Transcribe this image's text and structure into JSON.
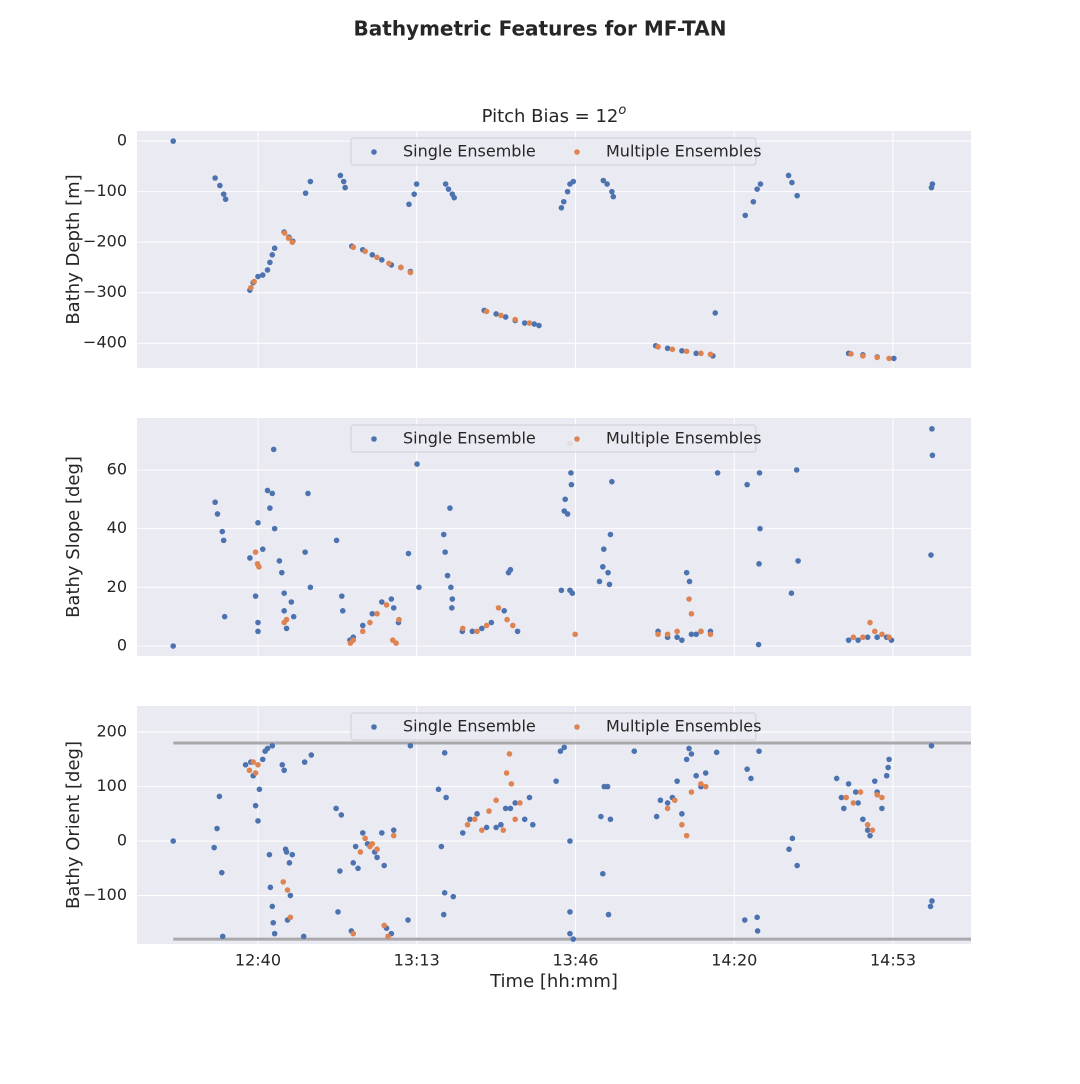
{
  "title": "Bathymetric Features for MF-TAN",
  "chart_data": [
    {
      "type": "scatter",
      "title": "Pitch Bias = 12",
      "title_superscript": "o",
      "ylabel": "Bathy Depth [m]",
      "xlim": [
        734.6,
        909.7
      ],
      "xticks": [
        760,
        793.33,
        826.67,
        860,
        893.33
      ],
      "ylim": [
        -449,
        20
      ],
      "yticks": [
        {
          "value": 0,
          "label": "0"
        },
        {
          "value": -100,
          "label": "−100"
        },
        {
          "value": -200,
          "label": "−200"
        },
        {
          "value": -300,
          "label": "−300"
        },
        {
          "value": -400,
          "label": "−400"
        }
      ],
      "grid": true,
      "legend": "upper center",
      "series": [
        {
          "name": "Single Ensemble",
          "color": "#4c72b0",
          "x": [
            742.2,
            751,
            752,
            752.8,
            753.2,
            758.3,
            759,
            760,
            761,
            762,
            762.5,
            763,
            763.5,
            765.5,
            766.5,
            767.3,
            770,
            771,
            777.3,
            778,
            778.3,
            779.7,
            782,
            784,
            786,
            788,
            790,
            792,
            791.7,
            792.8,
            793.3,
            799.4,
            800,
            800.8,
            801.2,
            807.5,
            810,
            812,
            814,
            816,
            818,
            819,
            823.7,
            824.2,
            825,
            825.5,
            826.2,
            832.5,
            833.3,
            834.3,
            834.6,
            843.5,
            846,
            849,
            852,
            855.5,
            856,
            862.3,
            864,
            864.8,
            865.5,
            871.4,
            872.1,
            873.2,
            884,
            887,
            890,
            893.5,
            901.4,
            901.6
          ],
          "values": [
            0,
            -73,
            -88,
            -105,
            -115,
            -295,
            -280,
            -268,
            -265,
            -255,
            -240,
            -225,
            -212,
            -180,
            -190,
            -198,
            -103,
            -80,
            -68,
            -80,
            -92,
            -208,
            -215,
            -225,
            -235,
            -245,
            -250,
            -258,
            -125,
            -105,
            -85,
            -85,
            -95,
            -105,
            -112,
            -335,
            -342,
            -348,
            -355,
            -360,
            -362,
            -365,
            -132,
            -120,
            -100,
            -85,
            -80,
            -78,
            -85,
            -100,
            -110,
            -405,
            -410,
            -415,
            -420,
            -425,
            -340,
            -147,
            -120,
            -95,
            -85,
            -68,
            -82,
            -108,
            -420,
            -423,
            -427,
            -430,
            -92,
            -85
          ]
        },
        {
          "name": "Multiple Ensembles",
          "color": "#dd8452",
          "x": [
            758.5,
            759.2,
            765.6,
            766.4,
            767.2,
            780,
            782.5,
            785,
            787.5,
            790,
            792,
            808,
            811,
            814,
            817,
            844,
            847,
            850,
            853,
            855,
            884.5,
            887,
            890,
            892.5
          ],
          "values": [
            -290,
            -278,
            -182,
            -192,
            -200,
            -210,
            -218,
            -230,
            -242,
            -250,
            -260,
            -337,
            -345,
            -353,
            -360,
            -407,
            -412,
            -416,
            -420,
            -422,
            -421,
            -425,
            -428,
            -430
          ]
        }
      ]
    },
    {
      "type": "scatter",
      "ylabel": "Bathy Slope [deg]",
      "xlim": [
        734.6,
        909.7
      ],
      "xticks": [
        760,
        793.33,
        826.67,
        860,
        893.33
      ],
      "ylim": [
        -3.4,
        77.7
      ],
      "yticks": [
        0,
        20,
        40,
        60
      ],
      "grid": true,
      "legend": "upper center",
      "series": [
        {
          "name": "Single Ensemble",
          "color": "#4c72b0",
          "x": [
            742.2,
            751,
            751.5,
            752.5,
            752.8,
            753,
            758.3,
            759.5,
            760,
            760,
            760,
            761,
            762,
            762.5,
            763,
            763.5,
            763.3,
            764.5,
            765,
            765.5,
            765.5,
            766,
            767,
            767.5,
            769.9,
            770.5,
            771,
            776.5,
            777.8,
            777.6,
            779.3,
            780,
            782,
            784,
            786,
            788,
            788.5,
            789.5,
            791.6,
            793.4,
            793.8,
            799,
            799.3,
            799.8,
            800.3,
            800.5,
            800.8,
            800.7,
            802.9,
            805,
            807,
            809,
            811.7,
            812.6,
            813,
            814.5,
            823.7,
            824.3,
            824.5,
            825,
            825.7,
            825.8,
            825.5,
            826,
            831.7,
            832.4,
            832.6,
            833.5,
            833.8,
            834,
            834.3,
            844,
            846,
            848,
            849,
            850,
            850.6,
            851,
            852,
            853,
            855,
            856.5,
            862.7,
            865.1,
            865.3,
            865.4,
            865.2,
            872,
            873.4,
            873.1,
            884,
            886,
            888,
            890,
            892,
            893,
            901.5,
            901.6,
            901.3
          ],
          "values": [
            0,
            49,
            45,
            39,
            36,
            10,
            30,
            17,
            8,
            5,
            42,
            33,
            53,
            47,
            52,
            40,
            67,
            29,
            25,
            18,
            12,
            6,
            15,
            10,
            32,
            52,
            20,
            36,
            12,
            17,
            2,
            3,
            7,
            11,
            15,
            16,
            13,
            8,
            31.5,
            62,
            20,
            38,
            32,
            24,
            47,
            20,
            16,
            13,
            5,
            5,
            6,
            8,
            12,
            25,
            26,
            5,
            19,
            46,
            50,
            45,
            59,
            55,
            19,
            18,
            22,
            27,
            33,
            25,
            21,
            38,
            56,
            5,
            3,
            3,
            2,
            25,
            22,
            4,
            4,
            5,
            5,
            59,
            55,
            0.5,
            59,
            40,
            28,
            18,
            29,
            60,
            2,
            2,
            3,
            3,
            3,
            2,
            74,
            65,
            31
          ]
        },
        {
          "name": "Multiple Ensembles",
          "color": "#dd8452",
          "x": [
            759.5,
            759.9,
            760.2,
            765.5,
            766,
            779.4,
            780,
            782,
            783.5,
            785,
            787,
            788.3,
            789,
            789.6,
            803,
            806,
            808,
            810.5,
            812.3,
            813.5,
            825.5,
            826.6,
            844,
            846,
            848,
            850.5,
            851,
            853,
            855,
            885,
            887,
            888.5,
            889.5,
            891,
            892.5
          ],
          "values": [
            32,
            28,
            27,
            8,
            9,
            1,
            2,
            5,
            8,
            11,
            14,
            2,
            1,
            9,
            6,
            5,
            7,
            13,
            9,
            7,
            69,
            4,
            4,
            4,
            5,
            16,
            11,
            5,
            4,
            3,
            3,
            8,
            5,
            4,
            3
          ]
        }
      ]
    },
    {
      "type": "scatter",
      "ylabel": "Bathy Orient [deg]",
      "xlabel": "Time [hh:mm]",
      "xlim": [
        734.6,
        909.7
      ],
      "xticks": [
        {
          "value": 760,
          "label": "12:40"
        },
        {
          "value": 793.33,
          "label": "13:13"
        },
        {
          "value": 826.67,
          "label": "13:46"
        },
        {
          "value": 860,
          "label": "14:20"
        },
        {
          "value": 893.33,
          "label": "14:53"
        }
      ],
      "ylim": [
        -189,
        248
      ],
      "yticks": [
        200,
        100,
        0,
        {
          "value": -100,
          "label": "−100"
        }
      ],
      "grid": true,
      "legend": "upper center",
      "hlines": [
        180,
        -180
      ],
      "hline_xstart": 742.2,
      "hline_color": "#a9a9ad",
      "series": [
        {
          "name": "Single Ensemble",
          "color": "#4c72b0",
          "x": [
            742.2,
            750.8,
            751.4,
            751.9,
            752.4,
            752.6,
            757.4,
            758.5,
            759,
            759.5,
            760,
            760.3,
            761,
            761.5,
            762,
            763,
            762.4,
            762.6,
            763,
            763.2,
            763.5,
            765.1,
            765.5,
            765.8,
            766,
            766.6,
            767.2,
            766.8,
            766.2,
            769.6,
            769.8,
            771.2,
            776.4,
            776.8,
            777.5,
            777.2,
            779.6,
            780,
            780.5,
            781,
            782,
            783,
            784.5,
            785,
            786,
            786.5,
            787,
            788,
            788.5,
            791.5,
            792,
            797.9,
            798.5,
            799.2,
            799.2,
            799.5,
            799,
            801,
            803,
            804.5,
            806,
            808,
            810,
            811,
            812,
            813,
            814,
            816,
            817,
            817.7,
            822.6,
            823.5,
            824.3,
            825.5,
            825.5,
            825.5,
            826.2,
            832,
            832.7,
            833.4,
            832.4,
            833.6,
            834,
            839,
            843.7,
            844.5,
            846,
            847,
            848,
            849,
            850,
            850.5,
            851,
            852,
            853,
            854,
            856.3,
            862.2,
            862.7,
            863.5,
            864.8,
            864.9,
            865.2,
            871.5,
            872.2,
            873.2,
            881.5,
            882.5,
            883,
            884,
            885.5,
            886,
            887,
            888,
            888.5,
            889.5,
            890,
            891,
            892,
            892.5,
            892.3,
            901.2,
            901.5,
            901.4
          ],
          "values": [
            0,
            -12,
            23,
            82,
            -58,
            -175,
            140,
            145,
            120,
            65,
            37,
            95,
            150,
            165,
            170,
            175,
            -25,
            -85,
            -120,
            -150,
            -170,
            140,
            130,
            -15,
            -20,
            -40,
            -25,
            -100,
            -145,
            -175,
            145,
            158,
            60,
            -130,
            48,
            -55,
            -165,
            -40,
            -10,
            -50,
            15,
            -5,
            -20,
            -30,
            15,
            -45,
            -160,
            -170,
            20,
            -145,
            175,
            95,
            -10,
            162,
            -95,
            80,
            -135,
            -102,
            15,
            40,
            50,
            25,
            25,
            30,
            60,
            60,
            70,
            40,
            80,
            30,
            110,
            165,
            172,
            0,
            -130,
            -170,
            -180,
            45,
            100,
            100,
            -60,
            -135,
            40,
            165,
            45,
            75,
            70,
            80,
            110,
            50,
            150,
            170,
            160,
            120,
            100,
            125,
            163,
            -145,
            132,
            115,
            -140,
            -165,
            165,
            -15,
            5,
            -45,
            115,
            80,
            60,
            105,
            90,
            70,
            40,
            20,
            10,
            110,
            90,
            60,
            120,
            150,
            135,
            -120,
            -110,
            175
          ]
        },
        {
          "name": "Multiple Ensembles",
          "color": "#dd8452",
          "x": [
            758.2,
            759,
            759.5,
            760,
            765.3,
            766.2,
            766.8,
            780,
            781.5,
            782.5,
            783.5,
            784,
            785,
            786.5,
            787.3,
            788.5,
            804,
            805.5,
            807,
            808.5,
            810,
            811.5,
            812.2,
            812.8,
            813.2,
            814,
            815,
            846,
            847.5,
            849,
            850,
            851,
            853,
            854,
            883.5,
            885,
            886.5,
            888,
            889,
            890,
            891
          ],
          "values": [
            130,
            145,
            125,
            140,
            -75,
            -90,
            -140,
            -170,
            -20,
            5,
            -10,
            -5,
            -15,
            -155,
            -175,
            10,
            30,
            40,
            20,
            55,
            75,
            20,
            125,
            160,
            105,
            40,
            70,
            60,
            75,
            30,
            10,
            90,
            105,
            100,
            80,
            70,
            90,
            30,
            20,
            85,
            80
          ]
        }
      ]
    }
  ]
}
